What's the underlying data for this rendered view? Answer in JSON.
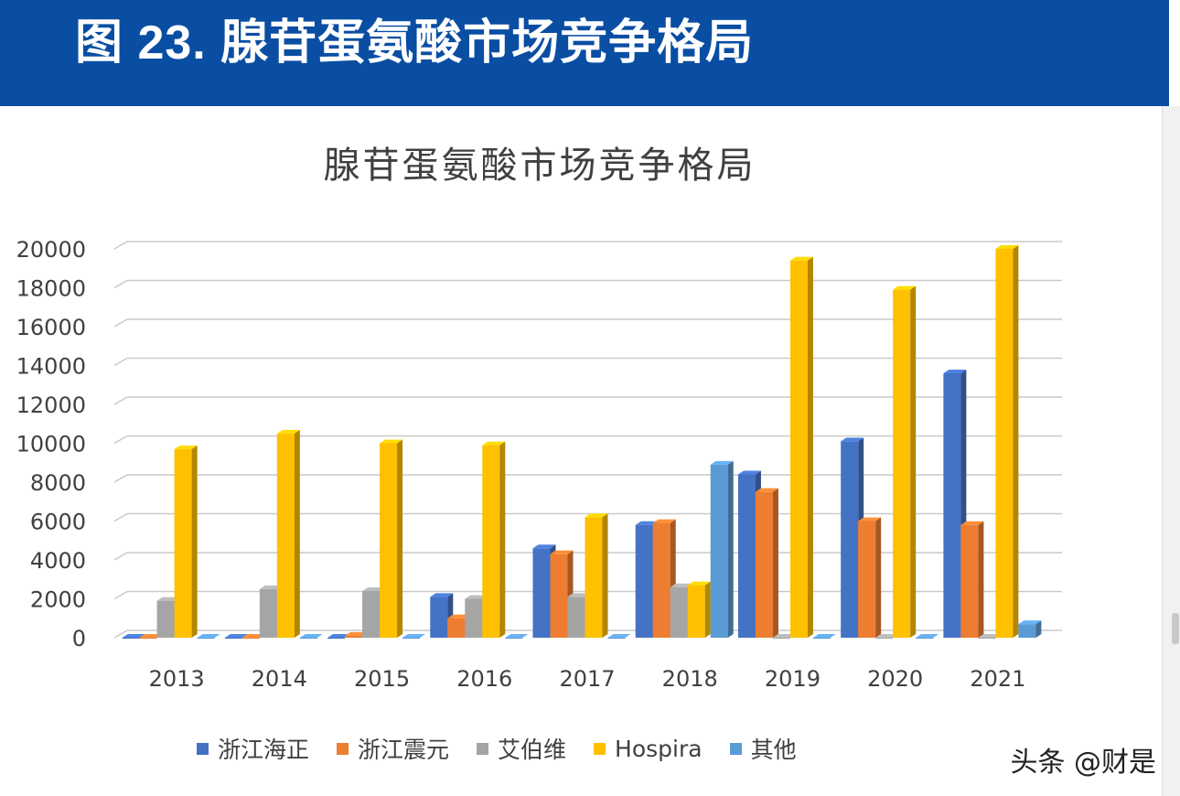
{
  "header": {
    "title": "图 23. 腺苷蛋氨酸市场竞争格局"
  },
  "watermark": "头条 @财是",
  "chart_data": {
    "type": "bar",
    "title": "腺苷蛋氨酸市场竞争格局",
    "categories": [
      "2013",
      "2014",
      "2015",
      "2016",
      "2017",
      "2018",
      "2019",
      "2020",
      "2021"
    ],
    "ylim": [
      0,
      20000
    ],
    "yticks": [
      "0",
      "2000",
      "4000",
      "6000",
      "8000",
      "10000",
      "12000",
      "14000",
      "16000",
      "18000",
      "20000"
    ],
    "grid": true,
    "legend_position": "bottom",
    "style": "3d-clustered-column",
    "series": [
      {
        "name": "浙江海正",
        "color": "#4472c4",
        "values": [
          0,
          0,
          0,
          2100,
          4600,
          5800,
          8400,
          10100,
          13600
        ]
      },
      {
        "name": "浙江震元",
        "color": "#ed7d31",
        "values": [
          0,
          0,
          100,
          1000,
          4300,
          5900,
          7500,
          6000,
          5800
        ]
      },
      {
        "name": "艾伯维",
        "color": "#a5a5a5",
        "values": [
          1900,
          2500,
          2400,
          2000,
          2100,
          2600,
          0,
          0,
          0
        ]
      },
      {
        "name": "Hospira",
        "color": "#ffc000",
        "values": [
          9700,
          10500,
          10000,
          9900,
          6200,
          2700,
          19400,
          17900,
          20000
        ]
      },
      {
        "name": "其他",
        "color": "#5b9bd5",
        "values": [
          0,
          0,
          0,
          0,
          0,
          8900,
          0,
          0,
          700
        ]
      }
    ]
  }
}
